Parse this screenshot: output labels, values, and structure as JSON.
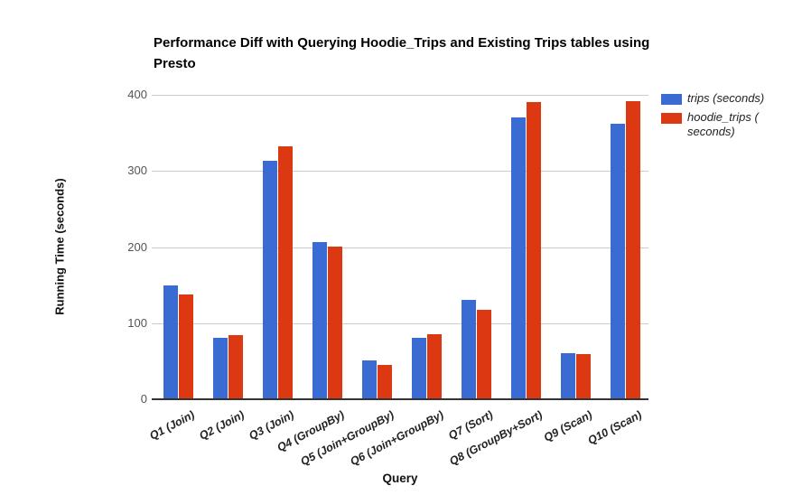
{
  "chart_data": {
    "type": "bar",
    "title": "Performance Diff with Querying Hoodie_Trips and Existing Trips tables using Presto",
    "xlabel": "Query",
    "ylabel": "Running Time (seconds)",
    "categories": [
      "Q1 (Join)",
      "Q2 (Join)",
      "Q3 (Join)",
      "Q4 (GroupBy)",
      "Q5 (Join+GroupBy)",
      "Q6 (Join+GroupBy)",
      "Q7 (Sort)",
      "Q8 (GroupBy+Sort)",
      "Q9 (Scan)",
      "Q10 (Scan)"
    ],
    "series": [
      {
        "name": "trips (seconds)",
        "color": "#3A6BD3",
        "values": [
          150,
          81,
          313,
          207,
          51,
          81,
          131,
          370,
          60,
          362
        ]
      },
      {
        "name": "hoodie_trips ( seconds)",
        "color": "#DC3912",
        "values": [
          138,
          84,
          332,
          201,
          45,
          85,
          117,
          390,
          59,
          392
        ]
      }
    ],
    "ylim": [
      0,
      400
    ],
    "yticks": [
      0,
      100,
      200,
      300,
      400
    ],
    "grid": true,
    "legend_position": "right",
    "colors": {
      "gridline": "#CCCCCC",
      "axis_line": "#333333",
      "tick_label": "#555555",
      "category_label": "#222222",
      "title": "#000000"
    }
  }
}
